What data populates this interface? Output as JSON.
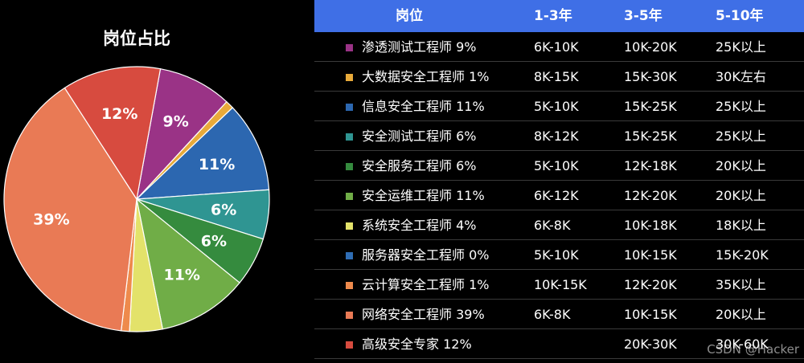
{
  "chart_data": [
    {
      "type": "pie",
      "title": "岗位占比",
      "slices": [
        {
          "label": "渗透测试工程师",
          "value": 9,
          "display": "9%",
          "color": "#9a3386"
        },
        {
          "label": "大数据安全工程师",
          "value": 1,
          "display": "",
          "color": "#e8aa3a"
        },
        {
          "label": "信息安全工程师",
          "value": 11,
          "display": "11%",
          "color": "#2c67b0"
        },
        {
          "label": "安全测试工程师",
          "value": 6,
          "display": "6%",
          "color": "#2f9592"
        },
        {
          "label": "安全服务工程师",
          "value": 6,
          "display": "6%",
          "color": "#358b3e"
        },
        {
          "label": "安全运维工程师",
          "value": 11,
          "display": "11%",
          "color": "#70ad47"
        },
        {
          "label": "系统安全工程师",
          "value": 4,
          "display": "",
          "color": "#e3e26a"
        },
        {
          "label": "服务器安全工程师",
          "value": 0,
          "display": "",
          "color": "#2f6db4"
        },
        {
          "label": "云计算安全工程师",
          "value": 1,
          "display": "",
          "color": "#ee8a4c"
        },
        {
          "label": "网络安全工程师",
          "value": 39,
          "display": "39%",
          "color": "#e97a55"
        },
        {
          "label": "高级安全专家",
          "value": 12,
          "display": "12%",
          "color": "#d74b3f"
        }
      ]
    },
    {
      "type": "table",
      "columns": [
        "岗位",
        "1-3年",
        "3-5年",
        "5-10年"
      ],
      "rows": [
        {
          "label": "渗透测试工程师 9%",
          "color": "#9a3386",
          "cells": [
            "6K-10K",
            "10K-20K",
            "25K以上"
          ]
        },
        {
          "label": "大数据安全工程师 1%",
          "color": "#e8aa3a",
          "cells": [
            "8K-15K",
            "15K-30K",
            "30K左右"
          ]
        },
        {
          "label": "信息安全工程师 11%",
          "color": "#2c67b0",
          "cells": [
            "5K-10K",
            "15K-25K",
            "25K以上"
          ]
        },
        {
          "label": "安全测试工程师 6%",
          "color": "#2f9592",
          "cells": [
            "8K-12K",
            "15K-25K",
            "25K以上"
          ]
        },
        {
          "label": "安全服务工程师 6%",
          "color": "#358b3e",
          "cells": [
            "5K-10K",
            "12K-18K",
            "20K以上"
          ]
        },
        {
          "label": "安全运维工程师 11%",
          "color": "#70ad47",
          "cells": [
            "6K-12K",
            "12K-20K",
            "20K以上"
          ]
        },
        {
          "label": "系统安全工程师 4%",
          "color": "#e3e26a",
          "cells": [
            "6K-8K",
            "10K-18K",
            "18K以上"
          ]
        },
        {
          "label": "服务器安全工程师 0%",
          "color": "#2f6db4",
          "cells": [
            "5K-10K",
            "10K-15K",
            "15K-20K"
          ]
        },
        {
          "label": "云计算安全工程师 1%",
          "color": "#ee8a4c",
          "cells": [
            "10K-15K",
            "12K-20K",
            "35K以上"
          ]
        },
        {
          "label": "网络安全工程师 39%",
          "color": "#e97a55",
          "cells": [
            "6K-8K",
            "10K-15K",
            "20K以上"
          ]
        },
        {
          "label": "高级安全专家 12%",
          "color": "#d74b3f",
          "cells": [
            "",
            "20K-30K",
            "30K-60K"
          ]
        }
      ]
    }
  ],
  "watermark": "CSDN @Hacker"
}
